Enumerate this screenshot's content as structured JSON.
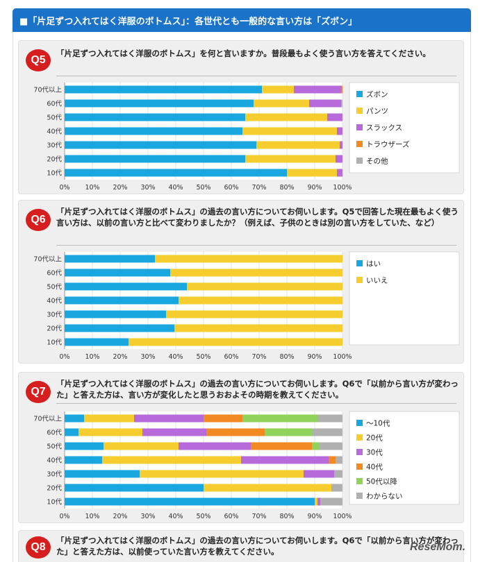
{
  "header": {
    "title": "■「片足ずつ入れてはく洋服のボトムス」：各世代とも一般的な言い方は「ズボン」"
  },
  "questions": [
    {
      "badge": "Q5",
      "text": "「片足ずつ入れてはく洋服のボトムス」を何と言いますか。普段最もよく使う言い方を答えてください。"
    },
    {
      "badge": "Q6",
      "text": "「片足ずつ入れてはく洋服のボトムス」の過去の言い方についてお伺いします。Q5で回答した現在最もよく使う言い方は、以前の言い方と比べて変わりましたか？（例えば、子供のときは別の言い方をしていた、など）"
    },
    {
      "badge": "Q7",
      "text": "「片足ずつ入れてはく洋服のボトムス」の過去の言い方についてお伺いします。Q6で「以前から言い方が変わった」と答えた方は、言い方が変化したと思うおおよその時期を教えてください。"
    },
    {
      "badge": "Q8",
      "text": "「片足ずつ入れてはく洋服のボトムス」の過去の言い方についてお伺いします。Q6で「以前から言い方が変わった」と答えた方は、以前使っていた言い方を教えてください。"
    }
  ],
  "logo": "ReseMom.",
  "chart_data": [
    {
      "type": "bar",
      "orientation": "horizontal-stacked",
      "categories": [
        "70代以上",
        "60代",
        "50代",
        "40代",
        "30代",
        "20代",
        "10代"
      ],
      "xlim": [
        0,
        100
      ],
      "xticks": [
        "0%",
        "10%",
        "20%",
        "30%",
        "40%",
        "50%",
        "60%",
        "70%",
        "80%",
        "90%",
        "100%"
      ],
      "legend": "right",
      "series": [
        {
          "name": "ズボン",
          "color": "#1aa7e0",
          "values": [
            71,
            68,
            65,
            64,
            69,
            65,
            80
          ]
        },
        {
          "name": "パンツ",
          "color": "#f5cd2e",
          "values": [
            11.5,
            20,
            29.5,
            34,
            30,
            32.5,
            18
          ]
        },
        {
          "name": "スラックス",
          "color": "#b76ad9",
          "values": [
            17,
            11.5,
            5.5,
            2,
            1,
            2.5,
            2
          ]
        },
        {
          "name": "トラウザーズ",
          "color": "#f28a24",
          "values": [
            0.5,
            0,
            0,
            0,
            0,
            0,
            0
          ]
        },
        {
          "name": "その他",
          "color": "#b0b0b0",
          "values": [
            0,
            0.5,
            0,
            0,
            0,
            0,
            0
          ]
        }
      ]
    },
    {
      "type": "bar",
      "orientation": "horizontal-stacked",
      "categories": [
        "70代以上",
        "60代",
        "50代",
        "40代",
        "30代",
        "20代",
        "10代"
      ],
      "xlim": [
        0,
        100
      ],
      "xticks": [
        "0%",
        "10%",
        "20%",
        "30%",
        "40%",
        "50%",
        "60%",
        "70%",
        "80%",
        "90%",
        "100%"
      ],
      "legend": "right",
      "series": [
        {
          "name": "はい",
          "color": "#1aa7e0",
          "values": [
            32.5,
            38,
            44,
            41,
            36.5,
            39.5,
            23
          ]
        },
        {
          "name": "いいえ",
          "color": "#f5cd2e",
          "values": [
            67.5,
            62,
            56,
            59,
            63.5,
            60.5,
            77
          ]
        }
      ]
    },
    {
      "type": "bar",
      "orientation": "horizontal-stacked",
      "categories": [
        "70代以上",
        "60代",
        "50代",
        "40代",
        "30代",
        "20代",
        "10代"
      ],
      "xlim": [
        0,
        100
      ],
      "xticks": [
        "0%",
        "10%",
        "20%",
        "30%",
        "40%",
        "50%",
        "60%",
        "70%",
        "80%",
        "90%",
        "100%"
      ],
      "legend": "right",
      "series": [
        {
          "name": "～10代",
          "color": "#1aa7e0",
          "values": [
            7,
            5,
            14,
            13.5,
            27,
            50,
            90
          ]
        },
        {
          "name": "20代",
          "color": "#f5cd2e",
          "values": [
            18,
            23,
            27,
            50,
            59,
            46,
            1
          ]
        },
        {
          "name": "30代",
          "color": "#b76ad9",
          "values": [
            25,
            23,
            26,
            31.5,
            11,
            0,
            1
          ]
        },
        {
          "name": "40代",
          "color": "#f28a24",
          "values": [
            14,
            21,
            22,
            2.5,
            0,
            0,
            0
          ]
        },
        {
          "name": "50代以降",
          "color": "#8fd35b",
          "values": [
            27,
            17,
            2.5,
            0,
            0,
            0,
            0
          ]
        },
        {
          "name": "わからない",
          "color": "#b0b0b0",
          "values": [
            9,
            11,
            8.5,
            2.5,
            3,
            4,
            8
          ]
        }
      ]
    }
  ]
}
